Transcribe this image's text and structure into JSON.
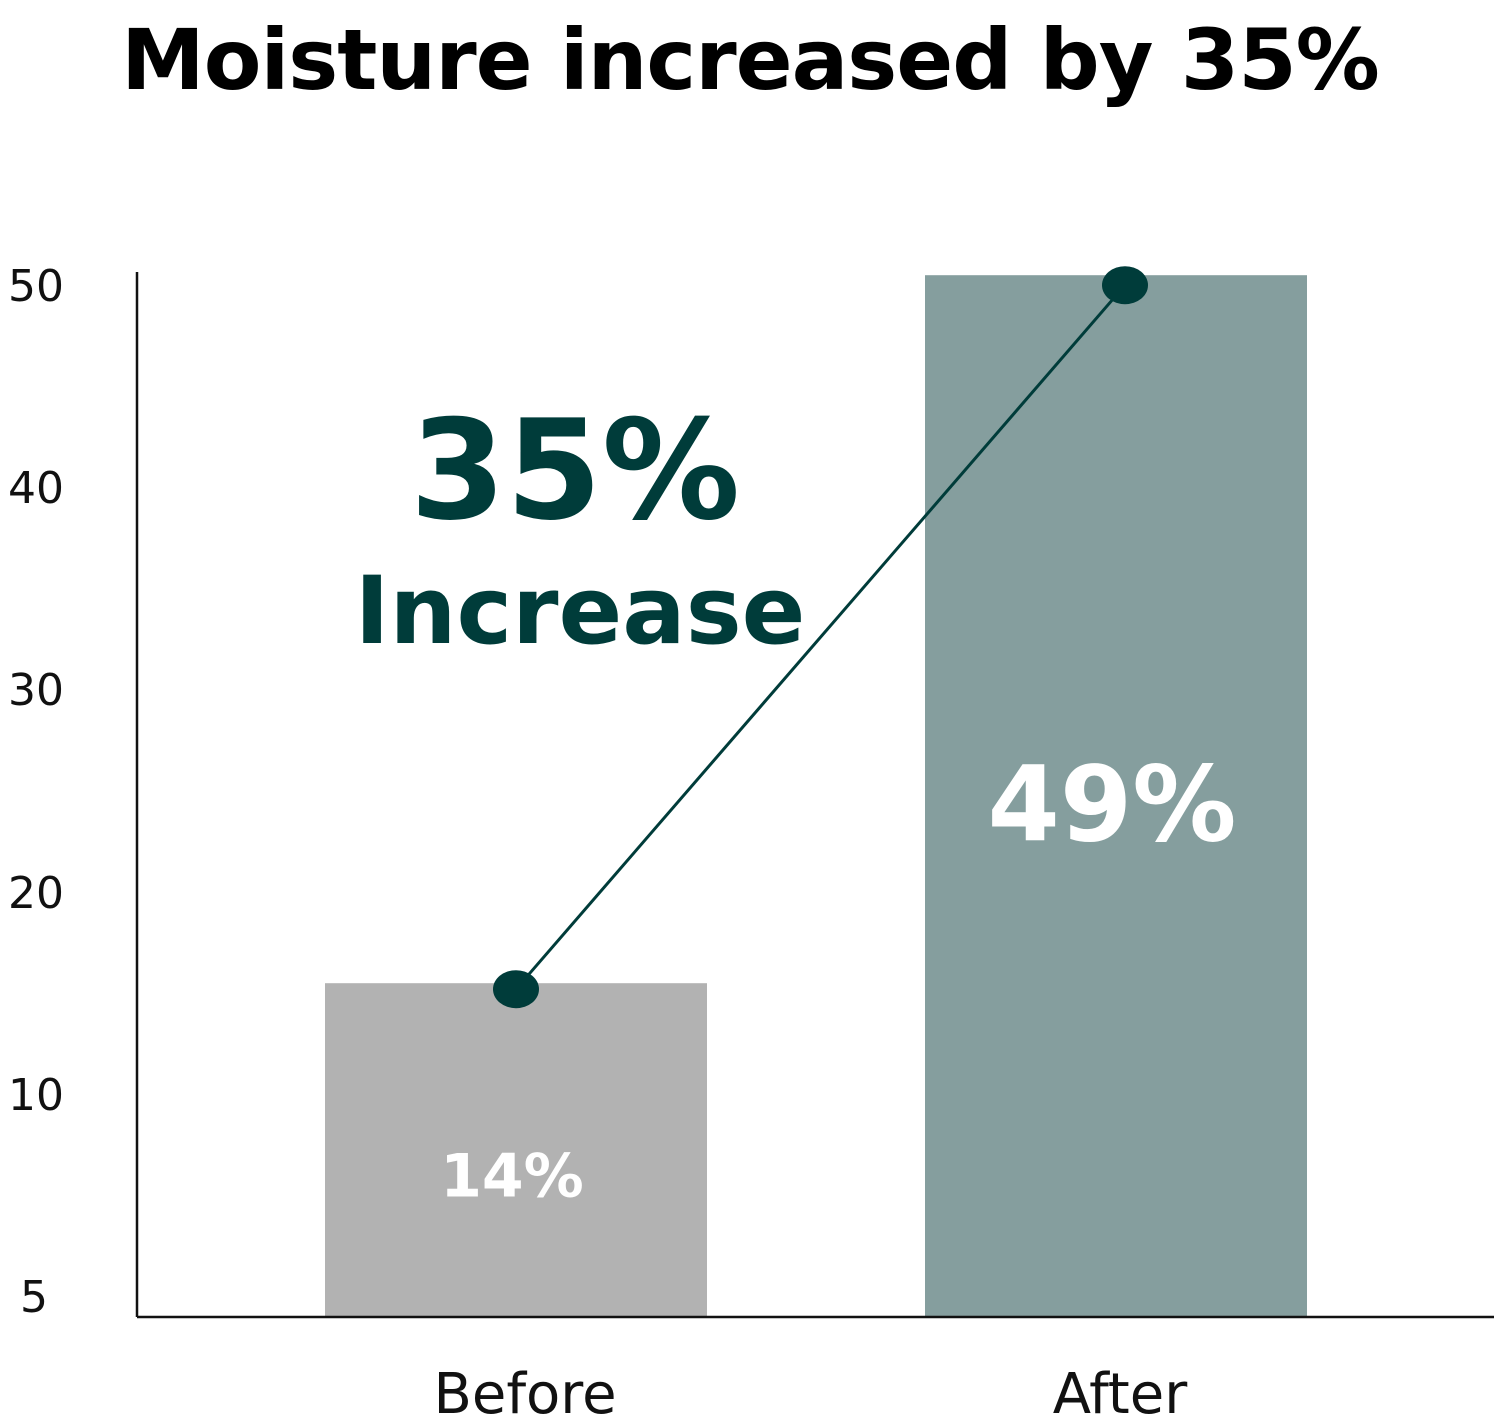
{
  "title": "Moisture increased by 35%",
  "chart_data": {
    "type": "bar",
    "categories": [
      "Before",
      "After"
    ],
    "values": [
      14,
      49
    ],
    "value_labels": [
      "14%",
      "49%"
    ],
    "yticks": [
      5,
      10,
      20,
      30,
      40,
      50
    ],
    "ylim": [
      5,
      50
    ],
    "xlabel": "",
    "ylabel": "",
    "grid": false,
    "annotation": {
      "value": "35%",
      "text": "Increase"
    },
    "connector_line": true,
    "colors": {
      "before_bar": "#b2b2b2",
      "after_bar": "#859e9e",
      "accent": "#003c3a",
      "bar_label": "#ffffff",
      "axis": "#111111"
    }
  }
}
